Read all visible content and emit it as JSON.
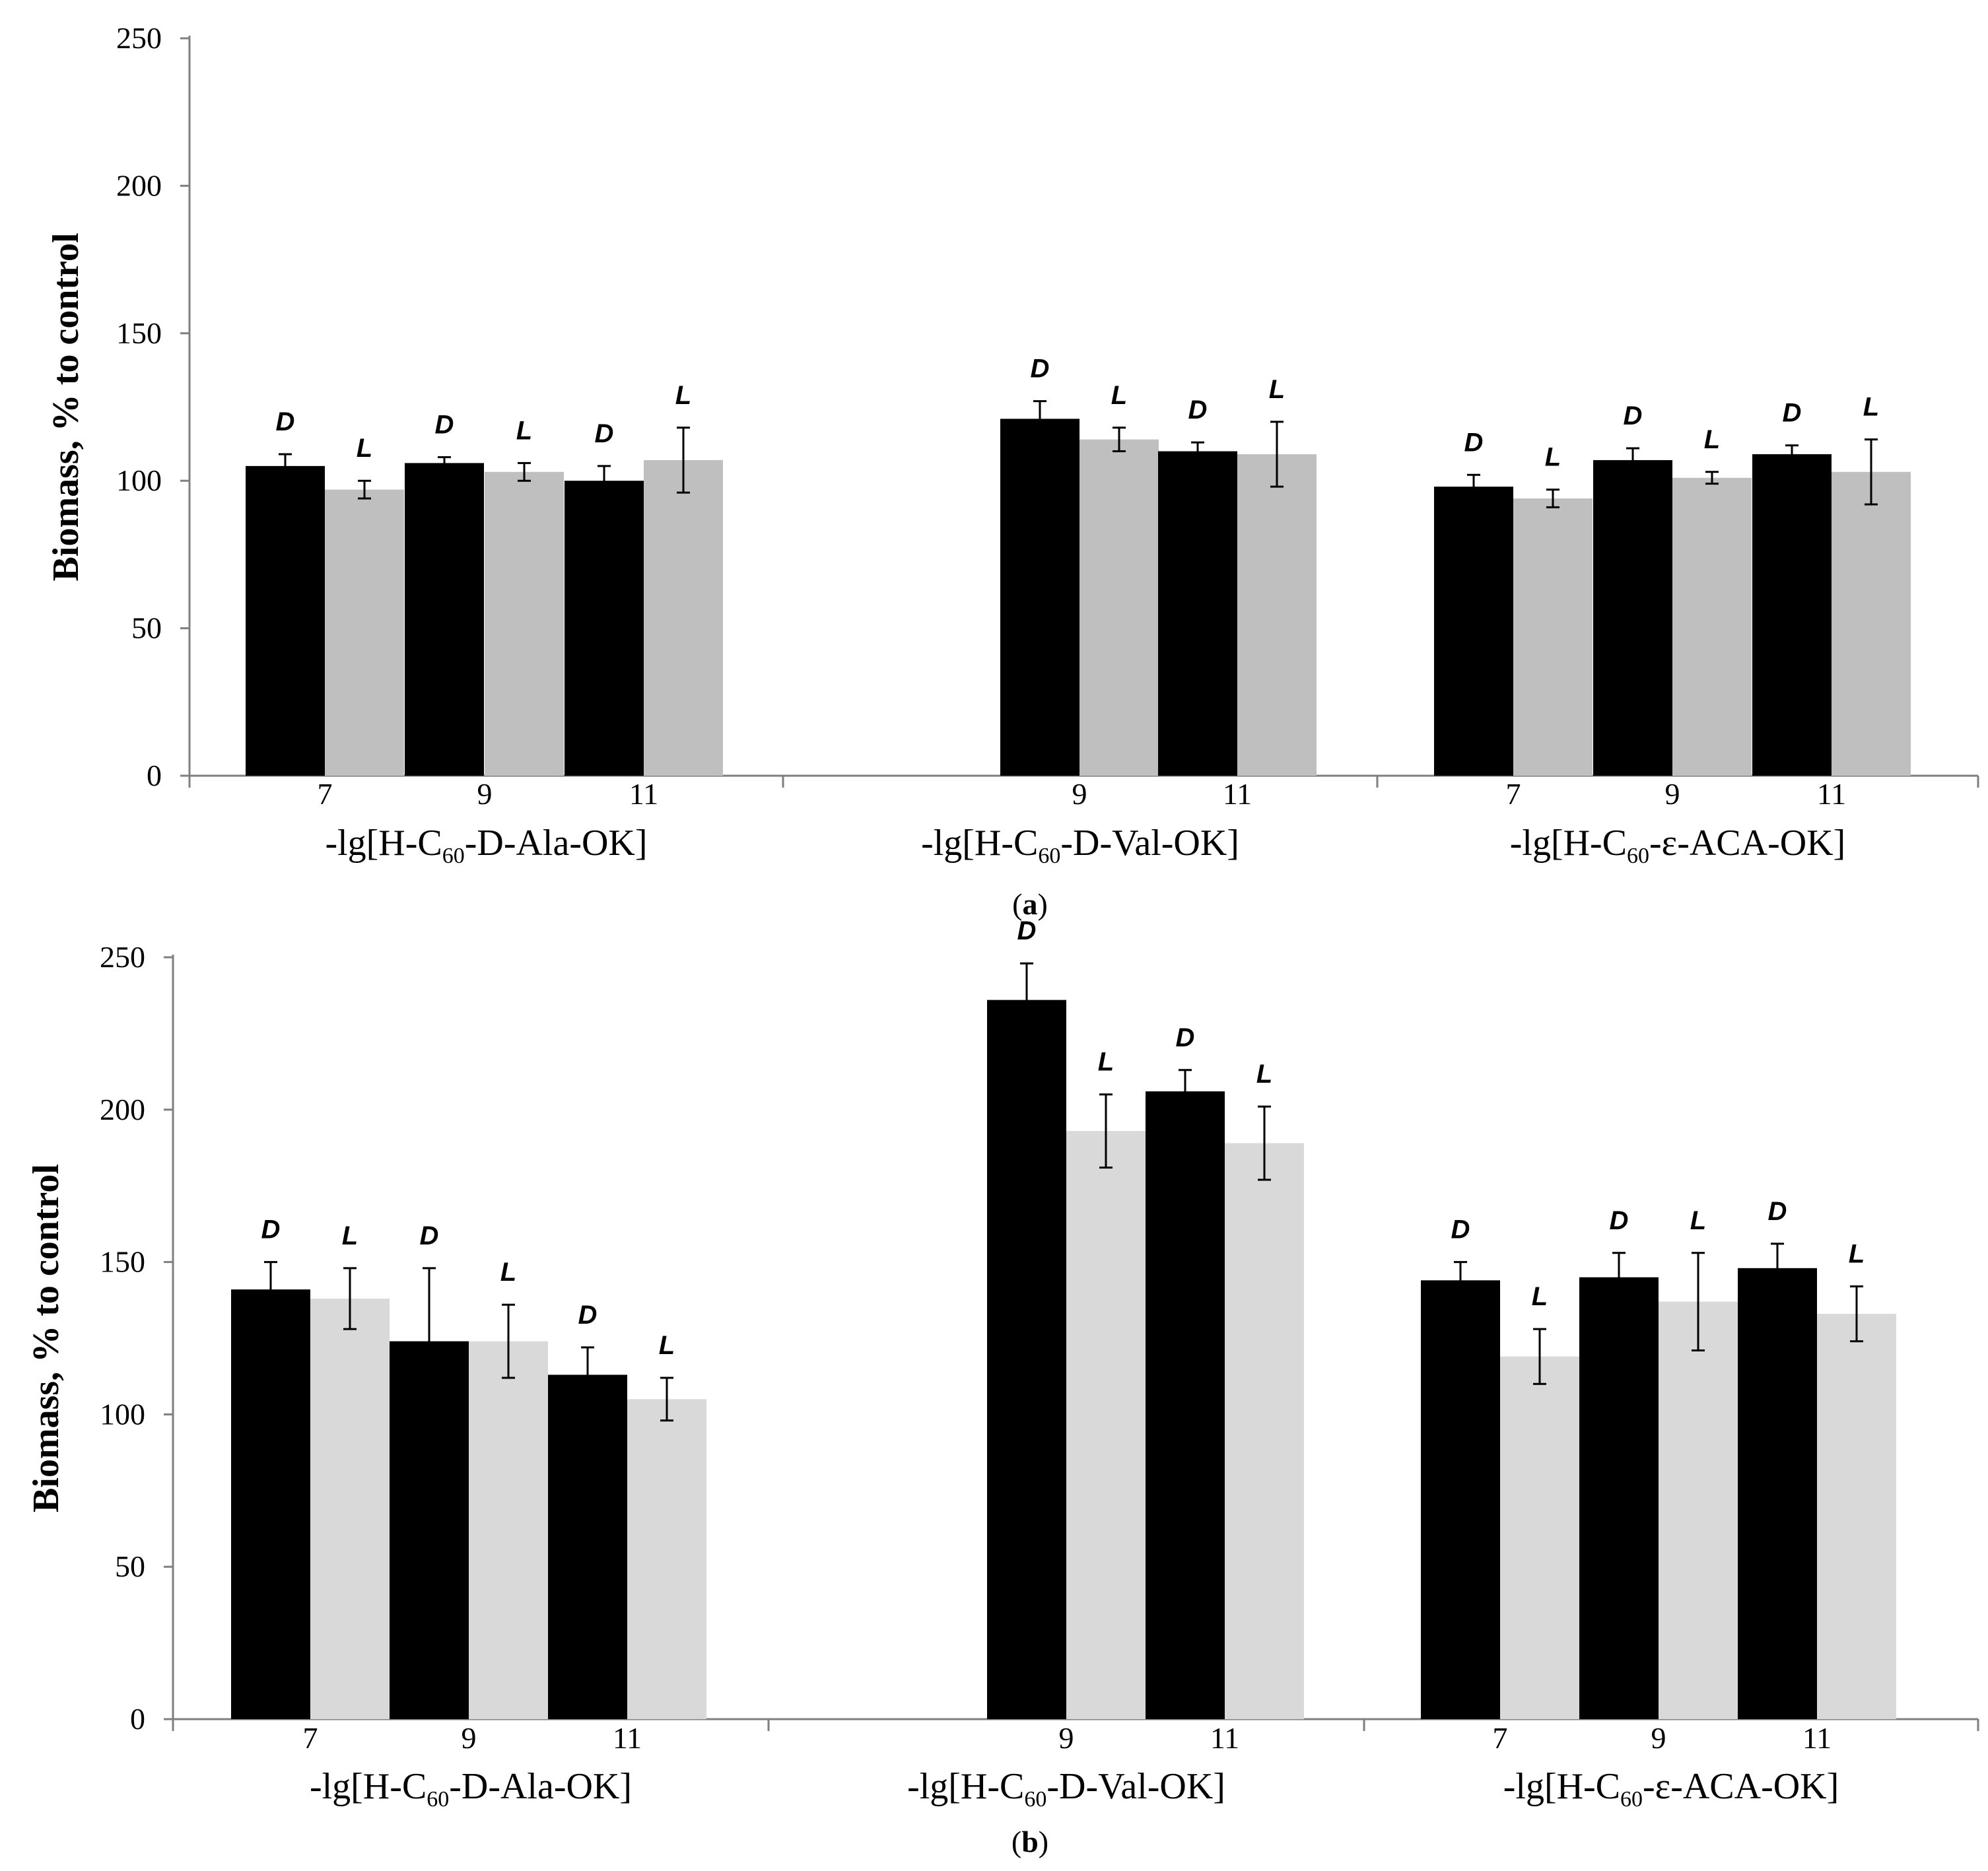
{
  "chart_data": [
    {
      "type": "bar",
      "panel_label": "a",
      "ylabel": "Biomass, % to control",
      "ylim": [
        0,
        250
      ],
      "yticks": [
        0,
        50,
        100,
        150,
        200,
        250
      ],
      "series": [
        {
          "name": "D",
          "color": "#000000"
        },
        {
          "name": "L",
          "color": "#bfbfbf"
        }
      ],
      "groups": [
        {
          "label_parts": [
            "-lg[H-C",
            "60",
            "-D-Ala-OK]"
          ],
          "bars": [
            {
              "tick": "7",
              "series": "D",
              "letter": "D",
              "value": 105,
              "error": 4
            },
            {
              "tick": "",
              "series": "L",
              "letter": "L",
              "value": 97,
              "error": 3
            },
            {
              "tick": "9",
              "series": "D",
              "letter": "D",
              "value": 106,
              "error": 2
            },
            {
              "tick": "",
              "series": "L",
              "letter": "L",
              "value": 103,
              "error": 3
            },
            {
              "tick": "11",
              "series": "D",
              "letter": "D",
              "value": 100,
              "error": 5
            },
            {
              "tick": "",
              "series": "L",
              "letter": "L",
              "value": 107,
              "error": 11
            }
          ]
        },
        {
          "label_parts": [
            "-lg[H-C",
            "60",
            "-D-Val-OK]"
          ],
          "bars": [
            {
              "tick": "9",
              "series": "D",
              "letter": "D",
              "value": 121,
              "error": 6
            },
            {
              "tick": "",
              "series": "L",
              "letter": "L",
              "value": 114,
              "error": 4
            },
            {
              "tick": "11",
              "series": "D",
              "letter": "D",
              "value": 110,
              "error": 3
            },
            {
              "tick": "",
              "series": "L",
              "letter": "L",
              "value": 109,
              "error": 11
            }
          ]
        },
        {
          "label_parts": [
            "-lg[H-C",
            "60",
            "-ε-ACA-OK]"
          ],
          "bars": [
            {
              "tick": "7",
              "series": "D",
              "letter": "D",
              "value": 98,
              "error": 4
            },
            {
              "tick": "",
              "series": "L",
              "letter": "L",
              "value": 94,
              "error": 3
            },
            {
              "tick": "9",
              "series": "D",
              "letter": "D",
              "value": 107,
              "error": 4
            },
            {
              "tick": "",
              "series": "L",
              "letter": "L",
              "value": 101,
              "error": 2
            },
            {
              "tick": "11",
              "series": "D",
              "letter": "D",
              "value": 109,
              "error": 3
            },
            {
              "tick": "",
              "series": "L",
              "letter": "L",
              "value": 103,
              "error": 11
            }
          ]
        }
      ]
    },
    {
      "type": "bar",
      "panel_label": "b",
      "ylabel": "Biomass, % to control",
      "ylim": [
        0,
        250
      ],
      "yticks": [
        0,
        50,
        100,
        150,
        200,
        250
      ],
      "series": [
        {
          "name": "D",
          "color": "#000000"
        },
        {
          "name": "L",
          "color": "#d9d9d9"
        }
      ],
      "groups": [
        {
          "label_parts": [
            "-lg[H-C",
            "60",
            "-D-Ala-OK]"
          ],
          "bars": [
            {
              "tick": "7",
              "series": "D",
              "letter": "D",
              "value": 141,
              "error": 9
            },
            {
              "tick": "",
              "series": "L",
              "letter": "L",
              "value": 138,
              "error": 10
            },
            {
              "tick": "9",
              "series": "D",
              "letter": "D",
              "value": 124,
              "error": 24
            },
            {
              "tick": "",
              "series": "L",
              "letter": "L",
              "value": 124,
              "error": 12
            },
            {
              "tick": "11",
              "series": "D",
              "letter": "D",
              "value": 113,
              "error": 9
            },
            {
              "tick": "",
              "series": "L",
              "letter": "L",
              "value": 105,
              "error": 7
            }
          ]
        },
        {
          "label_parts": [
            "-lg[H-C",
            "60",
            "-D-Val-OK]"
          ],
          "bars": [
            {
              "tick": "9",
              "series": "D",
              "letter": "D",
              "value": 236,
              "error": 12
            },
            {
              "tick": "",
              "series": "L",
              "letter": "L",
              "value": 193,
              "error": 12
            },
            {
              "tick": "11",
              "series": "D",
              "letter": "D",
              "value": 206,
              "error": 7
            },
            {
              "tick": "",
              "series": "L",
              "letter": "L",
              "value": 189,
              "error": 12
            }
          ]
        },
        {
          "label_parts": [
            "-lg[H-C",
            "60",
            "-ε-ACA-OK]"
          ],
          "bars": [
            {
              "tick": "7",
              "series": "D",
              "letter": "D",
              "value": 144,
              "error": 6
            },
            {
              "tick": "",
              "series": "L",
              "letter": "L",
              "value": 119,
              "error": 9
            },
            {
              "tick": "9",
              "series": "D",
              "letter": "D",
              "value": 145,
              "error": 8
            },
            {
              "tick": "",
              "series": "L",
              "letter": "L",
              "value": 137,
              "error": 16
            },
            {
              "tick": "11",
              "series": "D",
              "letter": "D",
              "value": 148,
              "error": 8
            },
            {
              "tick": "",
              "series": "L",
              "letter": "L",
              "value": 133,
              "error": 9
            }
          ]
        }
      ]
    }
  ]
}
